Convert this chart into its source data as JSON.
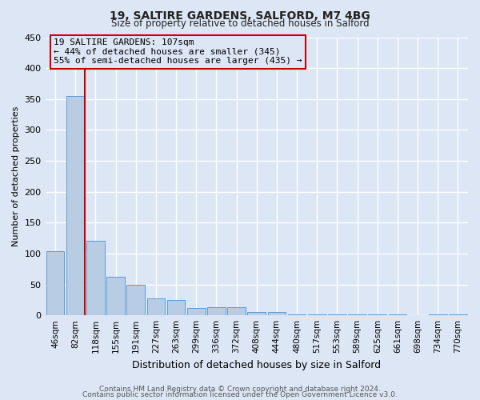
{
  "title": "19, SALTIRE GARDENS, SALFORD, M7 4BG",
  "subtitle": "Size of property relative to detached houses in Salford",
  "xlabel": "Distribution of detached houses by size in Salford",
  "ylabel": "Number of detached properties",
  "categories": [
    "46sqm",
    "82sqm",
    "118sqm",
    "155sqm",
    "191sqm",
    "227sqm",
    "263sqm",
    "299sqm",
    "336sqm",
    "372sqm",
    "408sqm",
    "444sqm",
    "480sqm",
    "517sqm",
    "553sqm",
    "589sqm",
    "625sqm",
    "661sqm",
    "698sqm",
    "734sqm",
    "770sqm"
  ],
  "values": [
    104,
    355,
    121,
    62,
    49,
    28,
    25,
    12,
    13,
    13,
    6,
    6,
    2,
    2,
    1,
    1,
    1,
    1,
    0,
    1,
    2
  ],
  "bar_color": "#b8cce4",
  "bar_edge_color": "#5b9bd5",
  "bg_color": "#dce6f5",
  "grid_color": "#ffffff",
  "vline_color": "#cc0000",
  "annotation_text": "19 SALTIRE GARDENS: 107sqm\n← 44% of detached houses are smaller (345)\n55% of semi-detached houses are larger (435) →",
  "annotation_box_color": "#cc0000",
  "ylim": [
    0,
    450
  ],
  "yticks": [
    0,
    50,
    100,
    150,
    200,
    250,
    300,
    350,
    400,
    450
  ],
  "footer1": "Contains HM Land Registry data © Crown copyright and database right 2024.",
  "footer2": "Contains public sector information licensed under the Open Government Licence v3.0."
}
